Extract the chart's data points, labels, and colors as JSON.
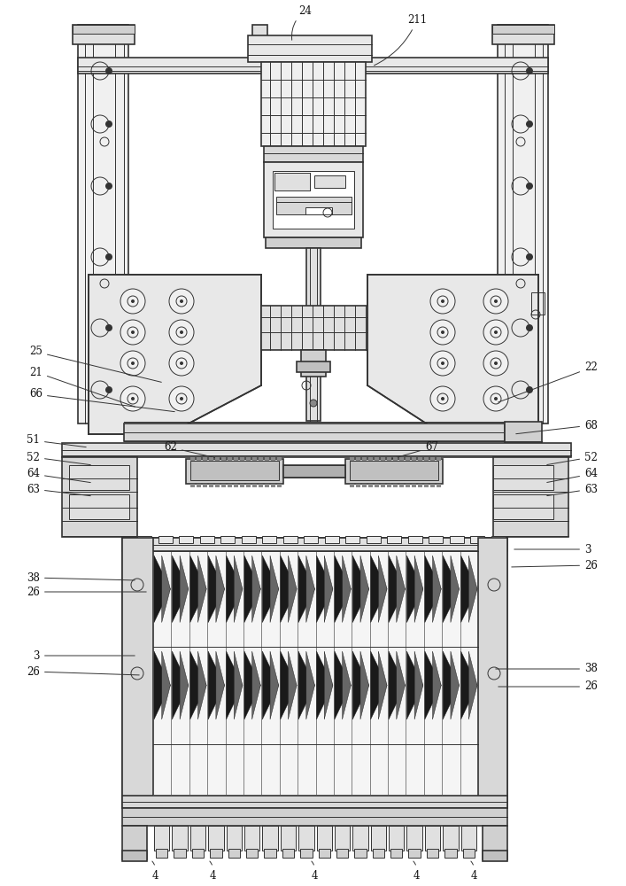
{
  "bg_color": "#ffffff",
  "lc": "#333333",
  "lc2": "#555555",
  "dark": "#1a1a1a",
  "lgray": "#e8e8e8",
  "mgray": "#d0d0d0",
  "dgray": "#aaaaaa"
}
